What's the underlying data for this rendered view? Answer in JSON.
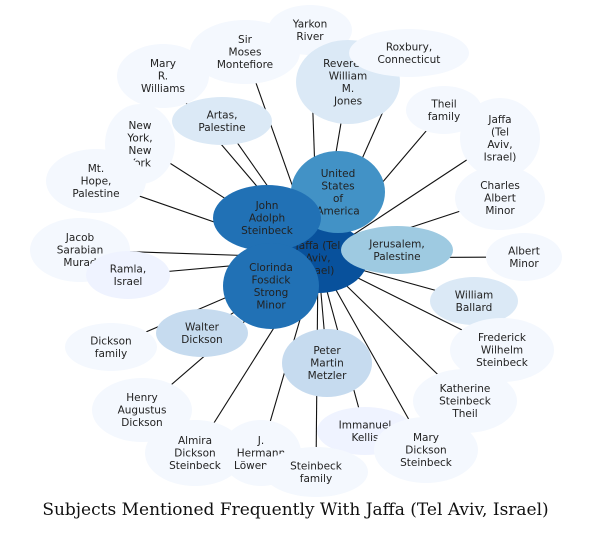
{
  "caption": "Subjects Mentioned Frequently With Jaffa (Tel Aviv, Israel)",
  "center": {
    "name": "center-node-jaffa",
    "label": "Jaffa (Tel Aviv, Israel)",
    "color": "#08519c"
  },
  "colors": {
    "edge": "#111111",
    "faint": "#eff3ff"
  },
  "nodes": [
    {
      "id": "yarkon",
      "label": "Yarkon River",
      "color": "#f4f8fe"
    },
    {
      "id": "sir_moses",
      "label": "Sir Moses Montefiore",
      "color": "#f4f8fe"
    },
    {
      "id": "mary_williams",
      "label": "Mary R. Williams",
      "color": "#f4f8fe"
    },
    {
      "id": "reverend",
      "label": "Reverend William M. Jones",
      "color": "#dbe9f6"
    },
    {
      "id": "roxbury",
      "label": "Roxbury, Connecticut",
      "color": "#f4f8fe"
    },
    {
      "id": "theil_family",
      "label": "Theil family",
      "color": "#f4f8fe"
    },
    {
      "id": "jaffa_sat",
      "label": "Jaffa (Tel Aviv, Israel)",
      "color": "#f4f8fe"
    },
    {
      "id": "artas",
      "label": "Artas, Palestine",
      "color": "#dbe9f6"
    },
    {
      "id": "new_york",
      "label": "New York, New York",
      "color": "#f4f8fe"
    },
    {
      "id": "mt_hope",
      "label": "Mt. Hope, Palestine",
      "color": "#f4f8fe"
    },
    {
      "id": "charles",
      "label": "Charles Albert Minor",
      "color": "#f4f8fe"
    },
    {
      "id": "usa",
      "label": "United States of America",
      "color": "#4292c6"
    },
    {
      "id": "john",
      "label": "John Adolph Steinbeck",
      "color": "#2171b5"
    },
    {
      "id": "jacob",
      "label": "Jacob Sarabian Murad",
      "color": "#f4f8fe"
    },
    {
      "id": "jerusalem",
      "label": "Jerusalem, Palestine",
      "color": "#9ecae1"
    },
    {
      "id": "albert",
      "label": "Albert Minor",
      "color": "#f4f8fe"
    },
    {
      "id": "ramla",
      "label": "Ramla, Israel",
      "color": "#eff3ff"
    },
    {
      "id": "clorinda",
      "label": "Clorinda Fosdick Strong Minor",
      "color": "#2171b5"
    },
    {
      "id": "william",
      "label": "William Ballard",
      "color": "#dbe9f6"
    },
    {
      "id": "dickson_family",
      "label": "Dickson family",
      "color": "#f4f8fe"
    },
    {
      "id": "walter",
      "label": "Walter Dickson",
      "color": "#c6dbef"
    },
    {
      "id": "frederick",
      "label": "Frederick Wilhelm Steinbeck",
      "color": "#f4f8fe"
    },
    {
      "id": "peter",
      "label": "Peter Martin Metzler",
      "color": "#c6dbef"
    },
    {
      "id": "henry",
      "label": "Henry Augustus Dickson",
      "color": "#f4f8fe"
    },
    {
      "id": "katherine",
      "label": "Katherine Steinbeck Theil",
      "color": "#f4f8fe"
    },
    {
      "id": "immanuel",
      "label": "Immanuel Kellis",
      "color": "#eff3ff"
    },
    {
      "id": "almira",
      "label": "Almira Dickson Steinbeck",
      "color": "#f4f8fe"
    },
    {
      "id": "hermann",
      "label": "J. Hermann Löwenthal",
      "color": "#f4f8fe"
    },
    {
      "id": "mary_dickson",
      "label": "Mary Dickson Steinbeck",
      "color": "#f4f8fe"
    },
    {
      "id": "steinbeck_family",
      "label": "Steinbeck family",
      "color": "#f4f8fe"
    }
  ]
}
